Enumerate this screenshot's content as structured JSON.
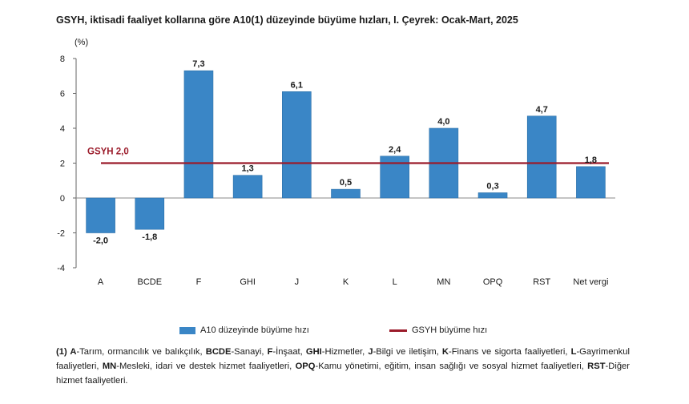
{
  "title": "GSYH, iktisadi faaliyet kollarına göre A10(1) düzeyinde büyüme hızları, I. Çeyrek: Ocak-Mart, 2025",
  "chart_data": {
    "type": "bar",
    "unit_label": "(%)",
    "categories": [
      "A",
      "BCDE",
      "F",
      "GHI",
      "J",
      "K",
      "L",
      "MN",
      "OPQ",
      "RST",
      "Net vergi"
    ],
    "series": [
      {
        "name": "A10 düzeyinde büyüme hızı",
        "values": [
          -2.0,
          -1.8,
          7.3,
          1.3,
          6.1,
          0.5,
          2.4,
          4.0,
          0.3,
          4.7,
          1.8
        ],
        "labels": [
          "-2,0",
          "-1,8",
          "7,3",
          "1,3",
          "6,1",
          "0,5",
          "2,4",
          "4,0",
          "0,3",
          "4,7",
          "1,8"
        ],
        "color": "#3a86c6"
      }
    ],
    "reference_line": {
      "name": "GSYH büyüme hızı",
      "value": 2.0,
      "label": "GSYH 2,0",
      "color": "#9b1b2a"
    },
    "ylim": [
      -4,
      8
    ],
    "yticks": [
      -4,
      -2,
      0,
      2,
      4,
      6,
      8
    ],
    "legend_position": "bottom",
    "grid": false
  },
  "footnote": [
    {
      "bold": "(1) A",
      "text": "-Tarım, ormancılık ve balıkçılık, "
    },
    {
      "bold": "BCDE",
      "text": "-Sanayi, "
    },
    {
      "bold": "F",
      "text": "-İnşaat, "
    },
    {
      "bold": "GHI",
      "text": "-Hizmetler, "
    },
    {
      "bold": "J",
      "text": "-Bilgi ve iletişim, "
    },
    {
      "bold": "K",
      "text": "-Finans ve sigorta faaliyetleri, "
    },
    {
      "bold": "L",
      "text": "-Gayrimenkul faaliyetleri, "
    },
    {
      "bold": "MN",
      "text": "-Mesleki, idari ve destek hizmet faaliyetleri, "
    },
    {
      "bold": "OPQ",
      "text": "-Kamu yönetimi, eğitim, insan sağlığı ve sosyal hizmet faaliyetleri, "
    },
    {
      "bold": "RST",
      "text": "-Diğer hizmet faaliyetleri."
    }
  ]
}
